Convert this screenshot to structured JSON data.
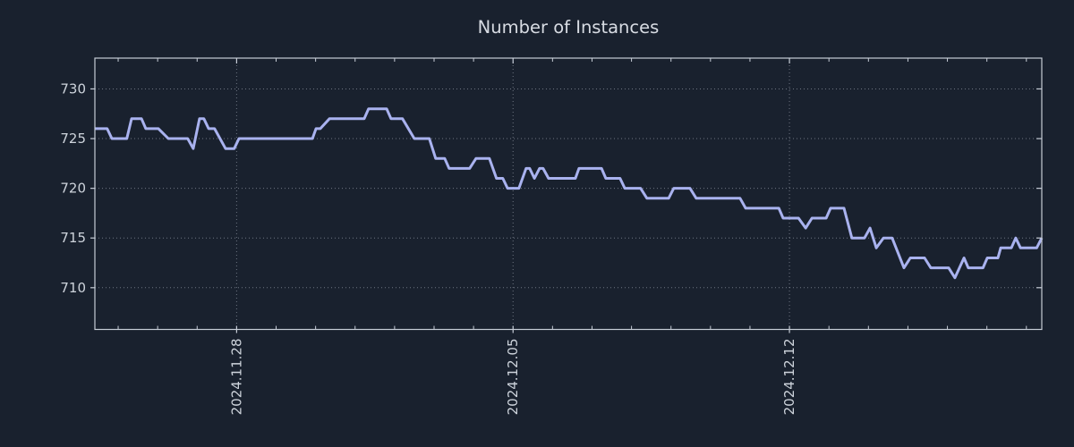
{
  "colors": {
    "background": "#19212e",
    "line": "#a9b2ef",
    "axis_border": "#c6ccd6",
    "grid": "#b4bbc7",
    "tick_label": "#cdd3db",
    "title": "#d8dce3"
  },
  "chart_data": {
    "type": "line",
    "title": "Number of Instances",
    "xlabel": "",
    "ylabel": "",
    "legend": "none",
    "grid": "dotted",
    "x_unit": "days relative to 2024.11.28",
    "xlim": [
      -3.59,
      20.39
    ],
    "ylim": [
      705.8,
      733.1
    ],
    "y_ticks": [
      710,
      715,
      720,
      725,
      730
    ],
    "x_ticks": [
      {
        "pos": 0,
        "label": "2024.11.28"
      },
      {
        "pos": 7,
        "label": "2024.12.05"
      },
      {
        "pos": 14,
        "label": "2024.12.12"
      }
    ],
    "minor_tick_interval_days": 1,
    "points": [
      [
        -3.59,
        726
      ],
      [
        -3.28,
        726
      ],
      [
        -3.16,
        725
      ],
      [
        -2.78,
        725
      ],
      [
        -2.66,
        727
      ],
      [
        -2.41,
        727
      ],
      [
        -2.3,
        726
      ],
      [
        -1.98,
        726
      ],
      [
        -1.73,
        725
      ],
      [
        -1.24,
        725
      ],
      [
        -1.1,
        724
      ],
      [
        -0.94,
        727
      ],
      [
        -0.83,
        727
      ],
      [
        -0.71,
        726
      ],
      [
        -0.56,
        726
      ],
      [
        -0.28,
        724
      ],
      [
        -0.06,
        724
      ],
      [
        0.06,
        725
      ],
      [
        1.92,
        725
      ],
      [
        2.01,
        726
      ],
      [
        2.12,
        726
      ],
      [
        2.35,
        727
      ],
      [
        3.23,
        727
      ],
      [
        3.34,
        728
      ],
      [
        3.8,
        728
      ],
      [
        3.91,
        727
      ],
      [
        4.2,
        727
      ],
      [
        4.5,
        725
      ],
      [
        4.88,
        725
      ],
      [
        5.04,
        723
      ],
      [
        5.27,
        723
      ],
      [
        5.38,
        722
      ],
      [
        5.9,
        722
      ],
      [
        6.06,
        723
      ],
      [
        6.4,
        723
      ],
      [
        6.58,
        721
      ],
      [
        6.74,
        721
      ],
      [
        6.86,
        720
      ],
      [
        7.15,
        720
      ],
      [
        7.33,
        722
      ],
      [
        7.42,
        722
      ],
      [
        7.54,
        721
      ],
      [
        7.67,
        722
      ],
      [
        7.76,
        722
      ],
      [
        7.9,
        721
      ],
      [
        8.58,
        721
      ],
      [
        8.67,
        722
      ],
      [
        9.24,
        722
      ],
      [
        9.35,
        721
      ],
      [
        9.71,
        721
      ],
      [
        9.83,
        720
      ],
      [
        10.23,
        720
      ],
      [
        10.39,
        719
      ],
      [
        10.94,
        719
      ],
      [
        11.07,
        720
      ],
      [
        11.48,
        720
      ],
      [
        11.64,
        719
      ],
      [
        12.75,
        719
      ],
      [
        12.89,
        718
      ],
      [
        13.73,
        718
      ],
      [
        13.84,
        717
      ],
      [
        14.23,
        717
      ],
      [
        14.41,
        716
      ],
      [
        14.57,
        717
      ],
      [
        14.93,
        717
      ],
      [
        15.04,
        718
      ],
      [
        15.38,
        718
      ],
      [
        15.58,
        715
      ],
      [
        15.9,
        715
      ],
      [
        16.04,
        716
      ],
      [
        16.2,
        714
      ],
      [
        16.38,
        715
      ],
      [
        16.6,
        715
      ],
      [
        16.9,
        712
      ],
      [
        17.06,
        713
      ],
      [
        17.42,
        713
      ],
      [
        17.58,
        712
      ],
      [
        18.03,
        712
      ],
      [
        18.19,
        711
      ],
      [
        18.42,
        713
      ],
      [
        18.53,
        712
      ],
      [
        18.9,
        712
      ],
      [
        19.01,
        713
      ],
      [
        19.28,
        713
      ],
      [
        19.35,
        714
      ],
      [
        19.62,
        714
      ],
      [
        19.73,
        715
      ],
      [
        19.85,
        714
      ],
      [
        20.26,
        714
      ],
      [
        20.39,
        715
      ]
    ]
  }
}
